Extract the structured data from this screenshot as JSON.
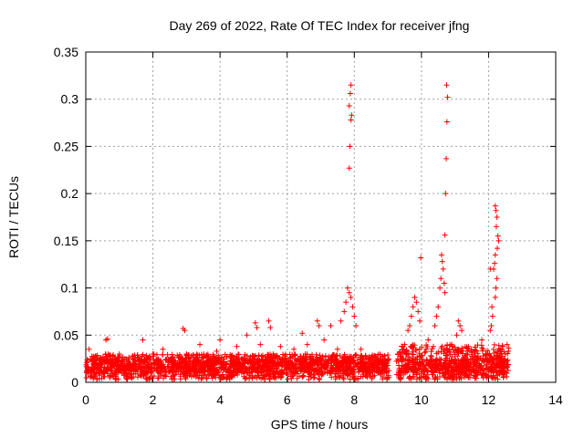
{
  "chart_data": {
    "type": "scatter",
    "title": "Day 269 of 2022, Rate Of TEC Index for receiver jfng",
    "xlabel": "GPS time / hours",
    "ylabel": "ROTI / TECUs",
    "xlim": [
      0,
      14
    ],
    "ylim": [
      0,
      0.35
    ],
    "xticks": [
      "0",
      "2",
      "4",
      "6",
      "8",
      "10",
      "12",
      "14"
    ],
    "yticks": [
      "0",
      "0.05",
      "0.1",
      "0.15",
      "0.2",
      "0.25",
      "0.3",
      "0.35"
    ],
    "grid": true,
    "marker": "+",
    "color": "#ff0000",
    "series": [
      {
        "name": "ROTI",
        "points": [
          [
            7.9,
            0.315
          ],
          [
            7.88,
            0.306
          ],
          [
            7.85,
            0.293
          ],
          [
            7.92,
            0.283
          ],
          [
            7.9,
            0.278
          ],
          [
            7.87,
            0.25
          ],
          [
            7.85,
            0.227
          ],
          [
            7.8,
            0.1
          ],
          [
            7.85,
            0.095
          ],
          [
            7.9,
            0.09
          ],
          [
            7.75,
            0.085
          ],
          [
            7.95,
            0.08
          ],
          [
            8.0,
            0.07
          ],
          [
            8.05,
            0.06
          ],
          [
            7.7,
            0.075
          ],
          [
            7.6,
            0.065
          ],
          [
            10.75,
            0.315
          ],
          [
            10.78,
            0.302
          ],
          [
            10.76,
            0.276
          ],
          [
            10.74,
            0.237
          ],
          [
            10.72,
            0.2
          ],
          [
            10.7,
            0.156
          ],
          [
            10.6,
            0.135
          ],
          [
            10.62,
            0.128
          ],
          [
            10.65,
            0.12
          ],
          [
            10.58,
            0.11
          ],
          [
            10.68,
            0.105
          ],
          [
            10.55,
            0.1
          ],
          [
            10.7,
            0.095
          ],
          [
            10.5,
            0.08
          ],
          [
            10.45,
            0.07
          ],
          [
            10.4,
            0.06
          ],
          [
            9.98,
            0.132
          ],
          [
            9.8,
            0.09
          ],
          [
            9.85,
            0.085
          ],
          [
            9.75,
            0.08
          ],
          [
            9.9,
            0.075
          ],
          [
            9.7,
            0.07
          ],
          [
            9.95,
            0.065
          ],
          [
            9.65,
            0.06
          ],
          [
            12.2,
            0.187
          ],
          [
            12.22,
            0.182
          ],
          [
            12.25,
            0.175
          ],
          [
            12.23,
            0.165
          ],
          [
            12.28,
            0.155
          ],
          [
            12.3,
            0.15
          ],
          [
            12.26,
            0.142
          ],
          [
            12.2,
            0.135
          ],
          [
            12.18,
            0.126
          ],
          [
            12.15,
            0.12
          ],
          [
            12.05,
            0.12
          ],
          [
            12.25,
            0.11
          ],
          [
            12.22,
            0.1
          ],
          [
            12.2,
            0.09
          ],
          [
            12.1,
            0.08
          ],
          [
            12.12,
            0.07
          ],
          [
            12.08,
            0.06
          ],
          [
            12.05,
            0.055
          ],
          [
            11.1,
            0.065
          ],
          [
            11.15,
            0.06
          ],
          [
            11.2,
            0.055
          ],
          [
            11.05,
            0.05
          ],
          [
            0.6,
            0.045
          ],
          [
            0.65,
            0.046
          ],
          [
            2.9,
            0.057
          ],
          [
            2.95,
            0.055
          ],
          [
            5.05,
            0.063
          ],
          [
            5.1,
            0.058
          ],
          [
            5.45,
            0.065
          ],
          [
            5.5,
            0.058
          ],
          [
            6.45,
            0.052
          ],
          [
            6.9,
            0.065
          ],
          [
            6.95,
            0.06
          ],
          [
            7.3,
            0.06
          ],
          [
            4.8,
            0.05
          ],
          [
            3.4,
            0.04
          ],
          [
            1.7,
            0.045
          ],
          [
            4.0,
            0.045
          ],
          [
            9.6,
            0.055
          ],
          [
            11.8,
            0.045
          ],
          [
            12.55,
            0.04
          ],
          [
            0.1,
            0.035
          ],
          [
            0.3,
            0.028
          ],
          [
            0.5,
            0.022
          ],
          [
            0.8,
            0.018
          ],
          [
            1.0,
            0.03
          ],
          [
            1.2,
            0.025
          ],
          [
            1.5,
            0.02
          ],
          [
            2.0,
            0.03
          ],
          [
            2.3,
            0.035
          ],
          [
            2.6,
            0.025
          ],
          [
            3.0,
            0.03
          ],
          [
            3.3,
            0.022
          ],
          [
            3.6,
            0.028
          ],
          [
            3.9,
            0.033
          ],
          [
            4.2,
            0.027
          ],
          [
            4.5,
            0.038
          ],
          [
            5.2,
            0.04
          ],
          [
            5.8,
            0.038
          ],
          [
            6.2,
            0.035
          ],
          [
            6.6,
            0.04
          ],
          [
            7.1,
            0.045
          ],
          [
            7.5,
            0.035
          ],
          [
            8.2,
            0.035
          ],
          [
            8.5,
            0.025
          ],
          [
            8.8,
            0.022
          ],
          [
            9.3,
            0.03
          ],
          [
            9.5,
            0.04
          ],
          [
            10.2,
            0.045
          ],
          [
            10.9,
            0.04
          ],
          [
            11.4,
            0.035
          ],
          [
            11.6,
            0.028
          ],
          [
            12.4,
            0.035
          ],
          [
            12.5,
            0.03
          ]
        ],
        "dense_bands": [
          {
            "x": [
              0.0,
              12.6
            ],
            "y": [
              0.003,
              0.025
            ]
          },
          {
            "x": [
              0.0,
              9.0
            ],
            "y": [
              0.01,
              0.03
            ]
          },
          {
            "x": [
              9.3,
              12.6
            ],
            "y": [
              0.01,
              0.04
            ]
          }
        ]
      }
    ]
  }
}
